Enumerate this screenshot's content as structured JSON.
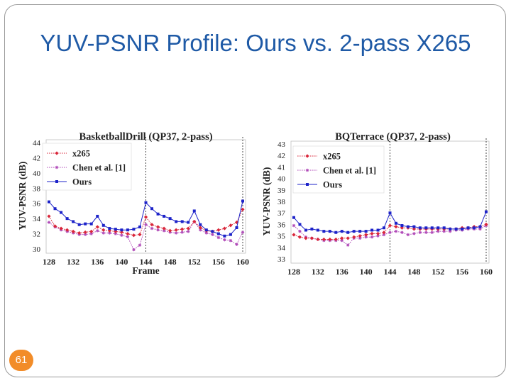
{
  "slide": {
    "title": "YUV-PSNR Profile: Ours vs. 2-pass X265",
    "page_number": "61"
  },
  "colors": {
    "title": "#1f5aa6",
    "badge": "#f28c28",
    "x265": "#d9263a",
    "chen": "#b04ab8",
    "ours": "#1d23c9"
  },
  "chart_data": [
    {
      "type": "line",
      "title": "BasketballDrill (QP37, 2-pass)",
      "xlabel": "Frame",
      "ylabel": "YUV-PSNR (dB)",
      "xlim": [
        128,
        160
      ],
      "ylim": [
        30,
        44
      ],
      "xticks": [
        128,
        132,
        136,
        140,
        144,
        148,
        152,
        156,
        160
      ],
      "yticks": [
        30,
        32,
        34,
        36,
        38,
        40,
        42,
        44
      ],
      "legend_position": "top-left",
      "dashed_vlines": [
        144
      ],
      "x": [
        128,
        129,
        130,
        131,
        132,
        133,
        134,
        135,
        136,
        137,
        138,
        139,
        140,
        141,
        142,
        143,
        144,
        145,
        146,
        147,
        148,
        149,
        150,
        151,
        152,
        153,
        154,
        155,
        156,
        157,
        158,
        159,
        160
      ],
      "series": [
        {
          "name": "x265",
          "marker": "diamond",
          "values": [
            34.3,
            33.0,
            32.7,
            32.5,
            32.3,
            32.1,
            32.2,
            32.3,
            32.9,
            32.5,
            32.4,
            32.3,
            32.2,
            32.0,
            31.8,
            31.9,
            34.2,
            33.2,
            32.9,
            32.7,
            32.4,
            32.5,
            32.6,
            32.7,
            33.6,
            32.8,
            32.4,
            32.3,
            32.5,
            32.7,
            33.1,
            33.5,
            35.2
          ]
        },
        {
          "name": "Chen et al. [1]",
          "marker": "star",
          "values": [
            33.5,
            32.9,
            32.5,
            32.3,
            32.1,
            31.9,
            31.9,
            32.0,
            32.4,
            32.1,
            32.1,
            32.0,
            31.8,
            31.6,
            29.9,
            30.5,
            33.2,
            32.7,
            32.5,
            32.4,
            32.2,
            32.1,
            32.2,
            32.3,
            33.6,
            32.5,
            32.1,
            31.9,
            31.5,
            31.2,
            31.1,
            30.6,
            32.2
          ]
        },
        {
          "name": "Ours",
          "marker": "square",
          "values": [
            36.2,
            35.3,
            34.8,
            34.0,
            33.6,
            33.2,
            33.3,
            33.3,
            34.3,
            33.1,
            32.7,
            32.6,
            32.5,
            32.5,
            32.6,
            32.9,
            36.1,
            35.3,
            34.6,
            34.3,
            34.0,
            33.6,
            33.6,
            33.5,
            35.0,
            33.2,
            32.5,
            32.3,
            32.0,
            31.7,
            31.9,
            32.8,
            36.3
          ]
        }
      ]
    },
    {
      "type": "line",
      "title": "BQTerrace (QP37, 2-pass)",
      "xlabel": "Frame",
      "ylabel": "YUV-PSNR (dB)",
      "xlim": [
        128,
        160
      ],
      "ylim": [
        33,
        43
      ],
      "xticks": [
        128,
        132,
        136,
        140,
        144,
        148,
        152,
        156,
        160
      ],
      "yticks": [
        33,
        34,
        35,
        36,
        37,
        38,
        39,
        40,
        41,
        42,
        43
      ],
      "legend_position": "top-left",
      "dashed_vlines": [
        144
      ],
      "x": [
        128,
        129,
        130,
        131,
        132,
        133,
        134,
        135,
        136,
        137,
        138,
        139,
        140,
        141,
        142,
        143,
        144,
        145,
        146,
        147,
        148,
        149,
        150,
        151,
        152,
        153,
        154,
        155,
        156,
        157,
        158,
        159,
        160
      ],
      "series": [
        {
          "name": "x265",
          "marker": "diamond",
          "values": [
            35.1,
            34.9,
            34.8,
            34.8,
            34.7,
            34.7,
            34.7,
            34.7,
            34.8,
            34.8,
            34.9,
            35.0,
            35.1,
            35.2,
            35.2,
            35.3,
            35.9,
            35.8,
            35.7,
            35.7,
            35.6,
            35.6,
            35.6,
            35.6,
            35.6,
            35.6,
            35.6,
            35.6,
            35.7,
            35.7,
            35.8,
            35.8,
            36.0
          ]
        },
        {
          "name": "Chen et al. [1]",
          "marker": "star",
          "values": [
            35.9,
            35.4,
            34.9,
            34.8,
            34.7,
            34.6,
            34.6,
            34.6,
            34.6,
            34.2,
            34.8,
            34.8,
            34.9,
            34.9,
            35.0,
            35.1,
            35.3,
            35.4,
            35.3,
            35.1,
            35.2,
            35.3,
            35.3,
            35.3,
            35.4,
            35.4,
            35.4,
            35.5,
            35.5,
            35.6,
            35.6,
            35.6,
            35.9
          ]
        },
        {
          "name": "Ours",
          "marker": "square",
          "values": [
            36.6,
            36.0,
            35.5,
            35.6,
            35.5,
            35.4,
            35.4,
            35.3,
            35.4,
            35.3,
            35.4,
            35.4,
            35.4,
            35.5,
            35.5,
            35.7,
            37.0,
            36.1,
            35.9,
            35.8,
            35.8,
            35.7,
            35.7,
            35.7,
            35.7,
            35.7,
            35.6,
            35.6,
            35.6,
            35.7,
            35.7,
            35.8,
            37.1
          ]
        }
      ]
    }
  ]
}
